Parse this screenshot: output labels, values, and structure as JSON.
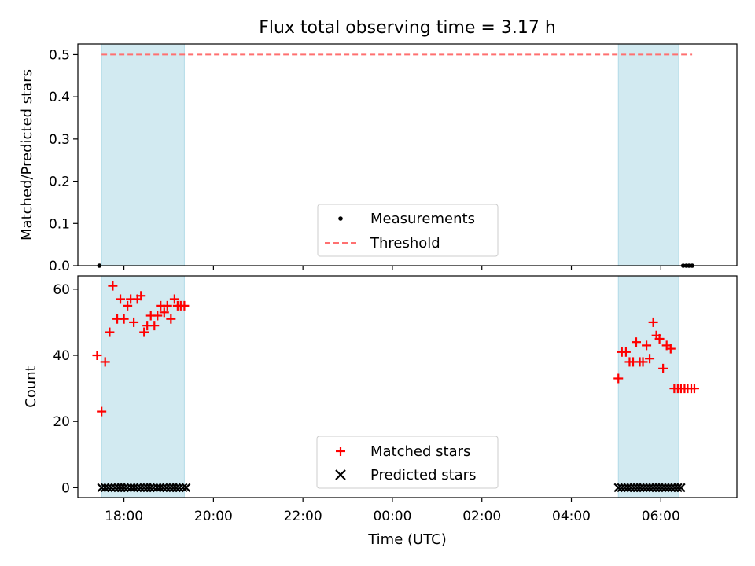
{
  "chart_data": [
    {
      "type": "scatter",
      "title": "Flux total observing time = 3.17 h",
      "xlabel": "",
      "ylabel": "Matched/Predicted stars",
      "xlim_hours": [
        16.97,
        31.7
      ],
      "ylim": [
        0.0,
        0.525
      ],
      "yticks": [
        0.0,
        0.1,
        0.2,
        0.3,
        0.4,
        0.5
      ],
      "ytick_labels": [
        "0.0",
        "0.1",
        "0.2",
        "0.3",
        "0.4",
        "0.5"
      ],
      "xticks_hours": [
        18,
        20,
        22,
        24,
        26,
        28,
        30
      ],
      "show_xtick_labels": false,
      "shaded_intervals_hours": [
        [
          17.5,
          19.35
        ],
        [
          29.05,
          30.4
        ]
      ],
      "shade_color": "#add8e6",
      "threshold": {
        "name": "Threshold",
        "y": 0.5,
        "x_range_hours": [
          17.5,
          30.7
        ],
        "color": "#ff7070"
      },
      "series": [
        {
          "name": "Measurements",
          "marker": "dot",
          "color": "#000000",
          "x_hours": [
            17.45,
            30.5,
            30.57,
            30.63,
            30.7
          ],
          "y": [
            0,
            0,
            0,
            0,
            0
          ]
        }
      ],
      "legend": {
        "placement": "bottom-center",
        "entries": [
          "Measurements",
          "Threshold"
        ]
      }
    },
    {
      "type": "scatter",
      "title": "",
      "xlabel": "Time (UTC)",
      "ylabel": "Count",
      "xlim_hours": [
        16.97,
        31.7
      ],
      "ylim": [
        -3,
        64
      ],
      "yticks": [
        0,
        20,
        40,
        60
      ],
      "ytick_labels": [
        "0",
        "20",
        "40",
        "60"
      ],
      "xticks_hours": [
        18,
        20,
        22,
        24,
        26,
        28,
        30
      ],
      "xtick_labels": [
        "18:00",
        "20:00",
        "22:00",
        "00:00",
        "02:00",
        "04:00",
        "06:00"
      ],
      "shaded_intervals_hours": [
        [
          17.5,
          19.35
        ],
        [
          29.05,
          30.4
        ]
      ],
      "shade_color": "#add8e6",
      "series": [
        {
          "name": "Matched stars",
          "marker": "plus",
          "color": "#ff0000",
          "x_hours": [
            17.4,
            17.5,
            17.58,
            17.68,
            17.75,
            17.85,
            17.92,
            18.0,
            18.08,
            18.15,
            18.22,
            18.3,
            18.38,
            18.45,
            18.52,
            18.6,
            18.68,
            18.75,
            18.82,
            18.9,
            18.97,
            19.05,
            19.13,
            19.2,
            19.27,
            19.35,
            29.05,
            29.13,
            29.22,
            29.3,
            29.38,
            29.45,
            29.53,
            29.6,
            29.68,
            29.75,
            29.83,
            29.9,
            29.97,
            30.05,
            30.13,
            30.22,
            30.3,
            30.38,
            30.45,
            30.53,
            30.6,
            30.68,
            30.75
          ],
          "y": [
            40,
            23,
            38,
            47,
            61,
            51,
            57,
            51,
            55,
            57,
            50,
            57,
            58,
            47,
            49,
            52,
            49,
            52,
            55,
            53,
            55,
            51,
            57,
            55,
            55,
            55,
            33,
            41,
            41,
            38,
            38,
            44,
            38,
            38,
            43,
            39,
            50,
            46,
            45,
            36,
            43,
            42,
            30,
            30,
            30,
            30,
            30,
            30,
            30
          ]
        },
        {
          "name": "Predicted stars",
          "marker": "x",
          "color": "#000000",
          "x_hours": [
            17.5,
            17.58,
            17.65,
            17.72,
            17.8,
            17.87,
            17.94,
            18.01,
            18.08,
            18.16,
            18.23,
            18.3,
            18.37,
            18.45,
            18.52,
            18.59,
            18.66,
            18.74,
            18.81,
            18.88,
            18.95,
            19.03,
            19.1,
            19.17,
            19.24,
            19.32,
            19.39,
            29.05,
            29.12,
            29.19,
            29.26,
            29.33,
            29.4,
            29.47,
            29.54,
            29.61,
            29.68,
            29.75,
            29.82,
            29.89,
            29.96,
            30.03,
            30.1,
            30.17,
            30.24,
            30.31,
            30.38,
            30.45
          ],
          "y_constant": 0
        }
      ],
      "legend": {
        "placement": "bottom-center",
        "entries": [
          "Matched stars",
          "Predicted stars"
        ]
      }
    }
  ]
}
